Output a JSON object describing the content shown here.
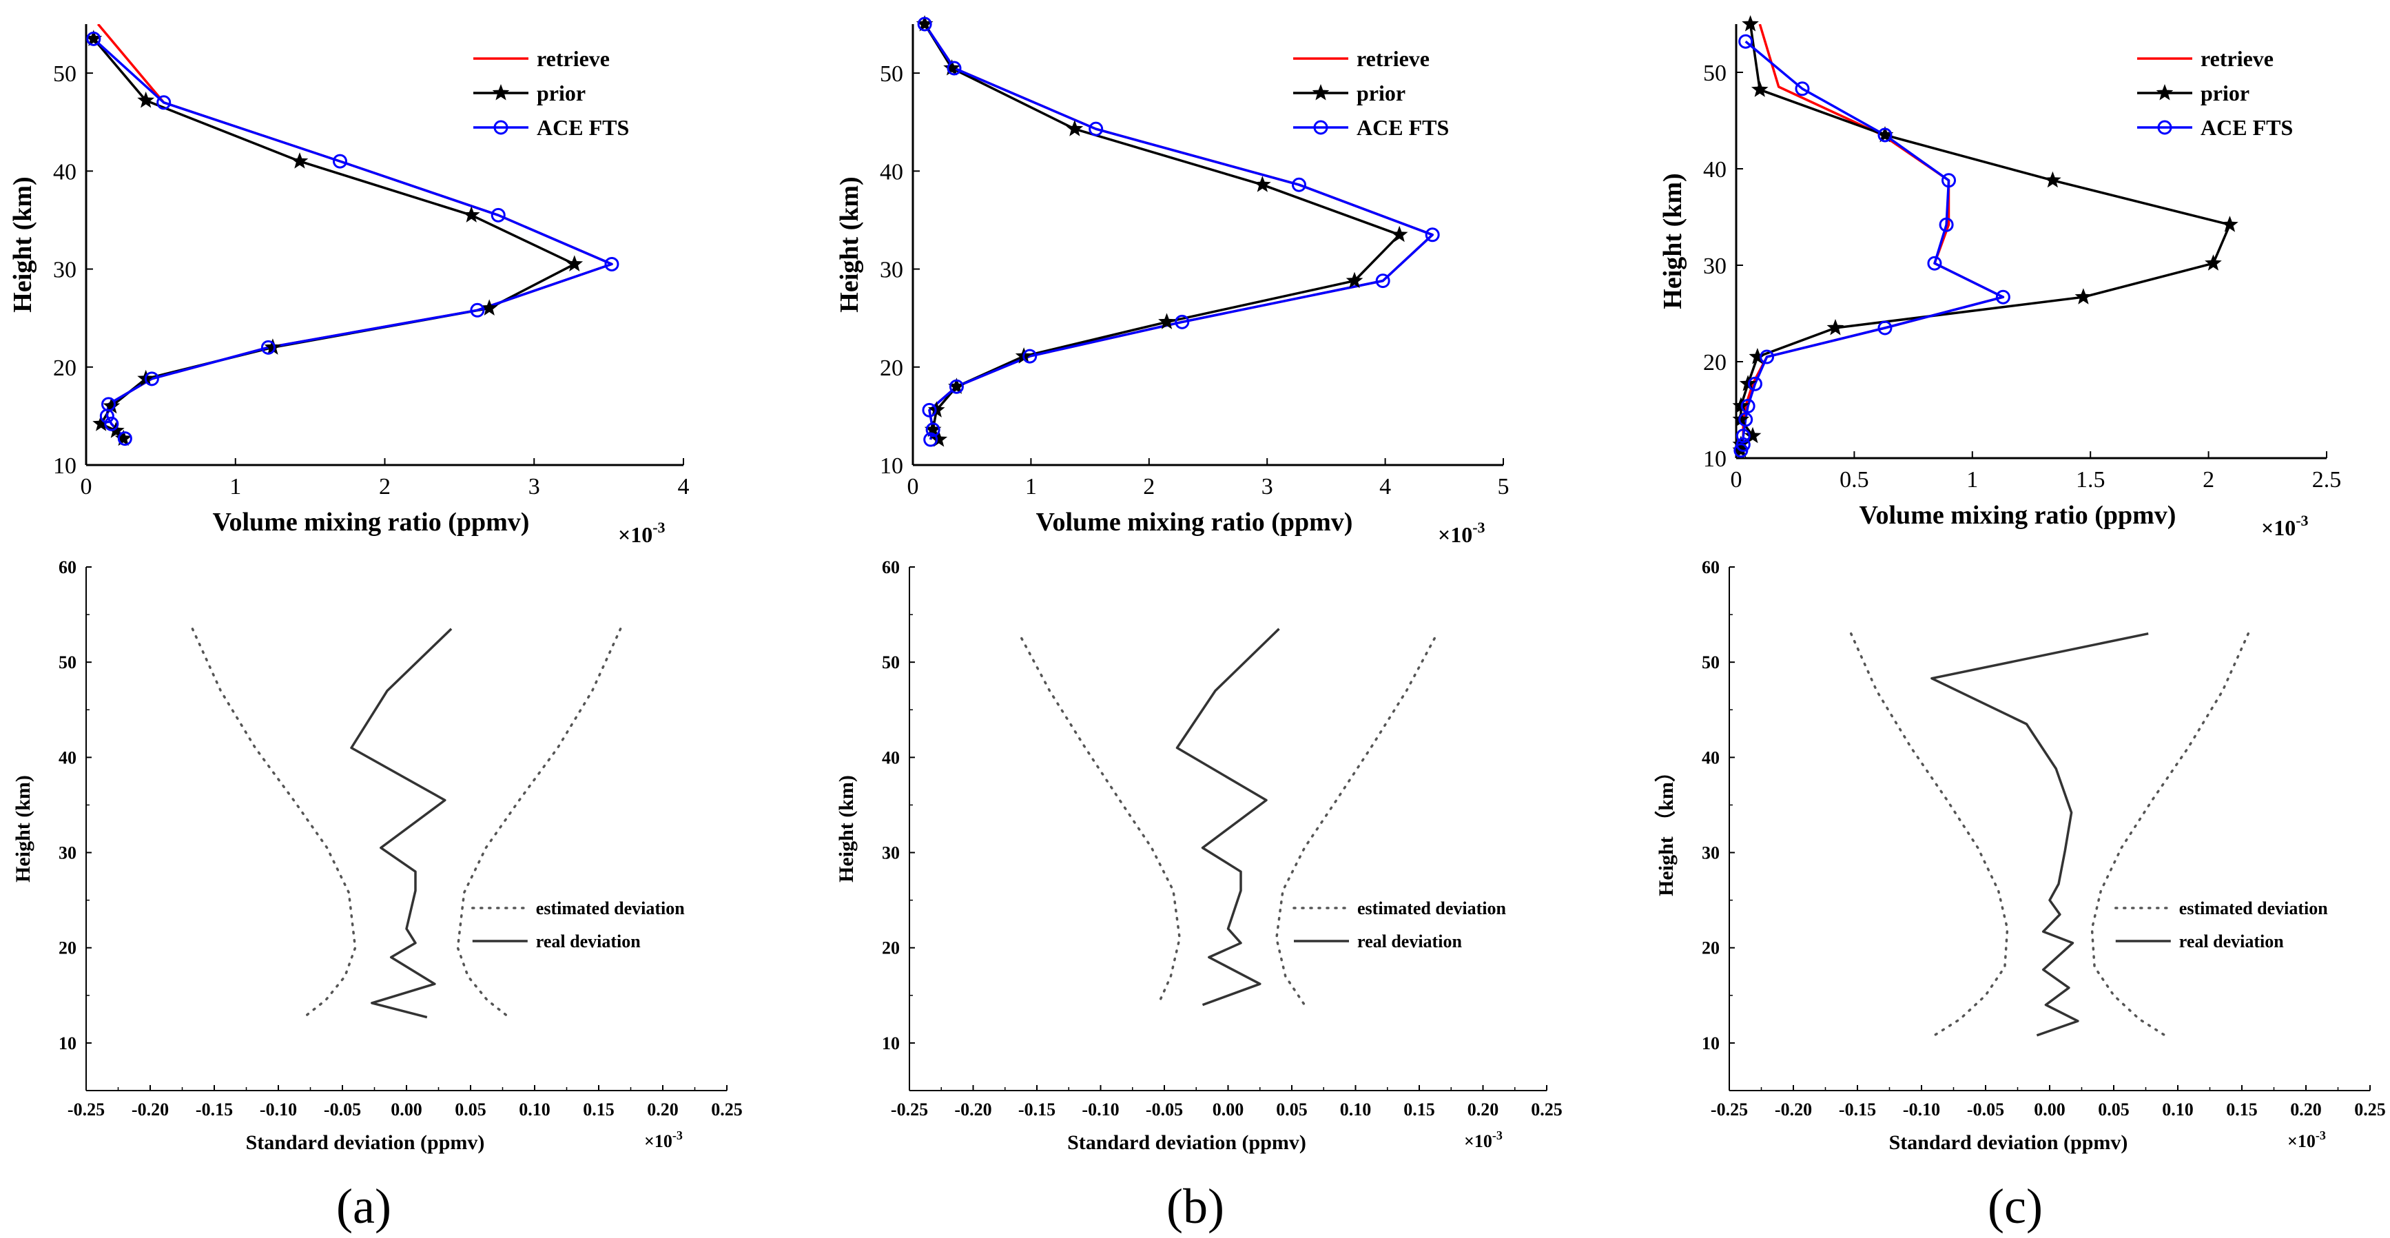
{
  "panels": [
    {
      "label": "a",
      "display": "(a)"
    },
    {
      "label": "b",
      "display": "(b)"
    },
    {
      "label": "c",
      "display": "(c)"
    }
  ],
  "chart_data": [
    {
      "id": "a-top",
      "type": "line",
      "panel": "a",
      "xlabel": "Volume mixing ratio (ppmv)",
      "xscale_label": "×10",
      "xscale_exp": "-3",
      "ylabel": "Height (km)",
      "xlim": [
        0,
        4
      ],
      "ylim": [
        10,
        55
      ],
      "xticks": [
        0,
        1,
        2,
        3,
        4
      ],
      "xtick_labels": [
        "0",
        "1",
        "2",
        "3",
        "4"
      ],
      "yticks": [
        10,
        20,
        30,
        40,
        50
      ],
      "ytick_labels": [
        "10",
        "20",
        "30",
        "40",
        "50"
      ],
      "legend": "top-right",
      "series": [
        {
          "name": "retrieve",
          "color": "#ff0000",
          "marker": "none",
          "x": [
            0.08,
            0.52,
            1.7,
            2.76,
            3.52,
            2.62,
            1.22,
            0.44,
            0.15,
            0.14,
            0.17,
            0.26
          ],
          "y": [
            55,
            47,
            41,
            35.5,
            30.5,
            25.8,
            22,
            18.8,
            16.2,
            15,
            14.2,
            12.7
          ]
        },
        {
          "name": "prior",
          "color": "#000000",
          "marker": "star",
          "x": [
            0.05,
            0.4,
            1.43,
            2.58,
            3.27,
            2.7,
            1.25,
            0.4,
            0.17,
            0.1,
            0.2,
            0.25
          ],
          "y": [
            53.5,
            47.2,
            41,
            35.5,
            30.5,
            26,
            22,
            18.8,
            16,
            14.2,
            13.5,
            12.7
          ]
        },
        {
          "name": "ACE FTS",
          "color": "#0000ff",
          "marker": "circle",
          "x": [
            0.05,
            0.52,
            1.7,
            2.76,
            3.52,
            2.62,
            1.22,
            0.44,
            0.15,
            0.14,
            0.17,
            0.26
          ],
          "y": [
            53.5,
            47,
            41,
            35.5,
            30.5,
            25.8,
            22,
            18.8,
            16.2,
            15,
            14.2,
            12.7
          ]
        }
      ]
    },
    {
      "id": "b-top",
      "type": "line",
      "panel": "b",
      "xlabel": "Volume mixing ratio (ppmv)",
      "xscale_label": "×10",
      "xscale_exp": "-3",
      "ylabel": "Height (km)",
      "xlim": [
        0,
        5
      ],
      "ylim": [
        10,
        55
      ],
      "xticks": [
        0,
        1,
        2,
        3,
        4,
        5
      ],
      "xtick_labels": [
        "0",
        "1",
        "2",
        "3",
        "4",
        "5"
      ],
      "yticks": [
        10,
        20,
        30,
        40,
        50
      ],
      "ytick_labels": [
        "10",
        "20",
        "30",
        "40",
        "50"
      ],
      "legend": "top-right",
      "series": [
        {
          "name": "retrieve",
          "color": "#ff0000",
          "marker": "none",
          "x": [
            0.1,
            0.35,
            1.55,
            3.27,
            4.4,
            3.98,
            2.28,
            0.99,
            0.37,
            0.14,
            0.17,
            0.15
          ],
          "y": [
            55,
            50.5,
            44.3,
            38.6,
            33.5,
            28.8,
            24.6,
            21.1,
            18,
            15.6,
            13.6,
            12.6
          ]
        },
        {
          "name": "prior",
          "color": "#000000",
          "marker": "star",
          "x": [
            0.1,
            0.33,
            1.37,
            2.96,
            4.12,
            3.74,
            2.15,
            0.94,
            0.37,
            0.2,
            0.17,
            0.22
          ],
          "y": [
            55,
            50.5,
            44.3,
            38.6,
            33.5,
            28.8,
            24.6,
            21.1,
            18,
            15.6,
            13.6,
            12.6
          ]
        },
        {
          "name": "ACE FTS",
          "color": "#0000ff",
          "marker": "circle",
          "x": [
            0.1,
            0.35,
            1.55,
            3.27,
            4.4,
            3.98,
            2.28,
            0.99,
            0.37,
            0.14,
            0.17,
            0.15
          ],
          "y": [
            55,
            50.5,
            44.3,
            38.6,
            33.5,
            28.8,
            24.6,
            21.1,
            18,
            15.6,
            13.6,
            12.6
          ]
        }
      ]
    },
    {
      "id": "c-top",
      "type": "line",
      "panel": "c",
      "xlabel": "Volume mixing ratio (ppmv)",
      "xscale_label": "×10",
      "xscale_exp": "-3",
      "ylabel": "Height (km)",
      "xlim": [
        0,
        2.5
      ],
      "ylim": [
        10,
        55
      ],
      "xticks": [
        0,
        0.5,
        1,
        1.5,
        2,
        2.5
      ],
      "xtick_labels": [
        "0",
        "0.5",
        "1",
        "1.5",
        "2",
        "2.5"
      ],
      "yticks": [
        10,
        20,
        30,
        40,
        50
      ],
      "ytick_labels": [
        "10",
        "20",
        "30",
        "40",
        "50"
      ],
      "legend": "top-right",
      "series": [
        {
          "name": "retrieve",
          "color": "#ff0000",
          "marker": "none",
          "x": [
            0.1,
            0.18,
            0.62,
            0.9,
            0.9,
            0.84,
            1.13,
            0.63,
            0.13,
            0.07,
            0.04,
            0.03,
            0.03,
            0.03,
            0.02
          ],
          "y": [
            55,
            48.5,
            43.5,
            38.8,
            34.2,
            30.2,
            26.7,
            23.5,
            20.5,
            17.7,
            15.4,
            14,
            12.3,
            11.4,
            10.8
          ]
        },
        {
          "name": "prior",
          "color": "#000000",
          "marker": "star",
          "x": [
            0.06,
            0.1,
            0.63,
            1.34,
            2.09,
            2.02,
            1.47,
            0.42,
            0.09,
            0.05,
            0.02,
            0.02,
            0.07,
            0.02,
            0.02
          ],
          "y": [
            55,
            48.2,
            43.5,
            38.8,
            34.2,
            30.2,
            26.7,
            23.5,
            20.5,
            17.7,
            15.4,
            14,
            12.3,
            11.4,
            10.8
          ]
        },
        {
          "name": "ACE FTS",
          "color": "#0000ff",
          "marker": "circle",
          "x": [
            0.04,
            0.28,
            0.63,
            0.9,
            0.89,
            0.84,
            1.13,
            0.63,
            0.13,
            0.08,
            0.05,
            0.04,
            0.03,
            0.03,
            0.02
          ],
          "y": [
            53.2,
            48.3,
            43.5,
            38.8,
            34.2,
            30.2,
            26.7,
            23.5,
            20.5,
            17.7,
            15.4,
            14,
            12.3,
            11.4,
            10.8
          ]
        }
      ]
    },
    {
      "id": "a-bot",
      "type": "line",
      "panel": "a",
      "xlabel": "Standard deviation (ppmv)",
      "xscale_label": "×10",
      "xscale_exp": "-3",
      "ylabel": "Height (km)",
      "xlim": [
        -0.25,
        0.25
      ],
      "ylim": [
        5,
        60
      ],
      "xticks": [
        -0.25,
        -0.2,
        -0.15,
        -0.1,
        -0.05,
        0,
        0.05,
        0.1,
        0.15,
        0.2,
        0.25
      ],
      "xtick_labels": [
        "-0.25",
        "-0.20",
        "-0.15",
        "-0.10",
        "-0.05",
        "0.00",
        "0.05",
        "0.10",
        "0.15",
        "0.20",
        "0.25"
      ],
      "yticks": [
        10,
        20,
        30,
        40,
        50,
        60
      ],
      "ytick_labels": [
        "10",
        "20",
        "30",
        "40",
        "50",
        "60"
      ],
      "legend": "right",
      "series": [
        {
          "name": "estimated deviation",
          "style": "dotted",
          "color": "#555555",
          "x": [
            -0.167,
            -0.145,
            -0.118,
            -0.088,
            -0.062,
            -0.045,
            -0.04,
            -0.048,
            -0.063,
            -0.08
          ],
          "y": [
            53.5,
            47,
            41,
            35.5,
            30.5,
            25.8,
            20,
            17,
            14.5,
            12.7
          ]
        },
        {
          "name": "estimated deviation",
          "style": "dotted",
          "color": "#555555",
          "x": [
            0.167,
            0.145,
            0.118,
            0.088,
            0.062,
            0.045,
            0.04,
            0.048,
            0.063,
            0.08
          ],
          "y": [
            53.5,
            47,
            41,
            35.5,
            30.5,
            25.8,
            20,
            17,
            14.5,
            12.7
          ]
        },
        {
          "name": "real deviation",
          "style": "solid",
          "color": "#333333",
          "x": [
            0.035,
            -0.015,
            -0.043,
            0.03,
            -0.02,
            0.007,
            0.007,
            0.0,
            0.007,
            -0.012,
            0.022,
            -0.027,
            0.016
          ],
          "y": [
            53.5,
            47,
            41,
            35.5,
            30.5,
            28,
            26,
            22,
            20.5,
            19,
            16.2,
            14.2,
            12.7
          ]
        }
      ]
    },
    {
      "id": "b-bot",
      "type": "line",
      "panel": "b",
      "xlabel": "Standard deviation (ppmv)",
      "xscale_label": "×10",
      "xscale_exp": "-3",
      "ylabel": "Height (km)",
      "xlim": [
        -0.25,
        0.25
      ],
      "ylim": [
        5,
        60
      ],
      "xticks": [
        -0.25,
        -0.2,
        -0.15,
        -0.1,
        -0.05,
        0,
        0.05,
        0.1,
        0.15,
        0.2,
        0.25
      ],
      "xtick_labels": [
        "-0.25",
        "-0.20",
        "-0.15",
        "-0.10",
        "-0.05",
        "0.00",
        "0.05",
        "0.10",
        "0.15",
        "0.20",
        "0.25"
      ],
      "yticks": [
        10,
        20,
        30,
        40,
        50,
        60
      ],
      "ytick_labels": [
        "10",
        "20",
        "30",
        "40",
        "50",
        "60"
      ],
      "legend": "right",
      "series": [
        {
          "name": "estimated deviation",
          "style": "dotted",
          "color": "#555555",
          "x": [
            -0.162,
            -0.14,
            -0.112,
            -0.085,
            -0.06,
            -0.043,
            -0.038,
            -0.045,
            -0.055
          ],
          "y": [
            52.5,
            47,
            41,
            35.5,
            30.5,
            26,
            21,
            17,
            14
          ]
        },
        {
          "name": "estimated deviation",
          "style": "dotted",
          "color": "#555555",
          "x": [
            0.162,
            0.14,
            0.112,
            0.085,
            0.06,
            0.043,
            0.038,
            0.045,
            0.06
          ],
          "y": [
            52.5,
            47,
            41,
            35.5,
            30.5,
            26,
            21,
            17,
            14
          ]
        },
        {
          "name": "real deviation",
          "style": "solid",
          "color": "#333333",
          "x": [
            0.04,
            -0.01,
            -0.04,
            0.03,
            -0.02,
            0.01,
            0.01,
            0.0,
            0.01,
            -0.015,
            0.025,
            -0.02
          ],
          "y": [
            53.5,
            47,
            41,
            35.5,
            30.5,
            28,
            26,
            22,
            20.5,
            19,
            16.2,
            14
          ]
        }
      ]
    },
    {
      "id": "c-bot",
      "type": "line",
      "panel": "c",
      "xlabel": "Standard deviation (ppmv)",
      "xscale_label": "×10",
      "xscale_exp": "-3",
      "ylabel": "Height （km）",
      "xlim": [
        -0.25,
        0.25
      ],
      "ylim": [
        5,
        60
      ],
      "xticks": [
        -0.25,
        -0.2,
        -0.15,
        -0.1,
        -0.05,
        0,
        0.05,
        0.1,
        0.15,
        0.2,
        0.25
      ],
      "xtick_labels": [
        "-0.25",
        "-0.20",
        "-0.15",
        "-0.10",
        "-0.05",
        "0.00",
        "0.05",
        "0.10",
        "0.15",
        "0.20",
        "0.25"
      ],
      "yticks": [
        10,
        20,
        30,
        40,
        50,
        60
      ],
      "ytick_labels": [
        "10",
        "20",
        "30",
        "40",
        "50",
        "60"
      ],
      "legend": "right",
      "series": [
        {
          "name": "estimated deviation",
          "style": "dotted",
          "color": "#555555",
          "x": [
            -0.155,
            -0.135,
            -0.108,
            -0.08,
            -0.056,
            -0.04,
            -0.033,
            -0.035,
            -0.05,
            -0.07,
            -0.09
          ],
          "y": [
            53,
            47,
            41,
            35.5,
            30.5,
            26,
            22,
            18,
            15,
            12.5,
            10.8
          ]
        },
        {
          "name": "estimated deviation",
          "style": "dotted",
          "color": "#555555",
          "x": [
            0.155,
            0.135,
            0.108,
            0.08,
            0.056,
            0.04,
            0.033,
            0.035,
            0.05,
            0.07,
            0.09
          ],
          "y": [
            53,
            47,
            41,
            35.5,
            30.5,
            26,
            22,
            18,
            15,
            12.5,
            10.8
          ]
        },
        {
          "name": "real deviation",
          "style": "solid",
          "color": "#333333",
          "x": [
            0.077,
            -0.092,
            -0.018,
            0.005,
            0.017,
            0.012,
            0.007,
            0.0,
            0.008,
            -0.005,
            0.018,
            -0.005,
            0.015,
            -0.003,
            0.022,
            -0.01
          ],
          "y": [
            53,
            48.3,
            43.5,
            38.8,
            34.2,
            30.2,
            26.7,
            25,
            23.5,
            21.7,
            20.5,
            17.7,
            15.8,
            14,
            12.3,
            10.8
          ]
        }
      ]
    }
  ]
}
